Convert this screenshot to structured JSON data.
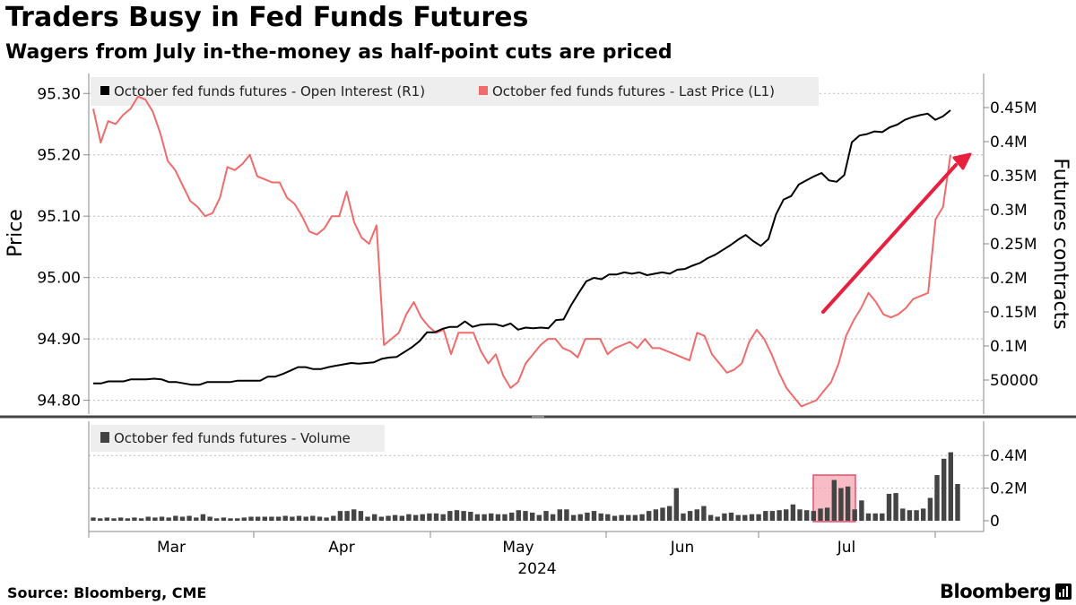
{
  "title": "Traders Busy in Fed Funds Futures",
  "subtitle": "Wagers from July in-the-money as half-point cuts are priced",
  "source": "Source: Bloomberg, CME",
  "brand": "Bloomberg",
  "colors": {
    "price": "#f06b6b",
    "open_interest": "#000000",
    "volume": "#444444",
    "arrow": "#e8203f",
    "highlight_fill": "#f4a6b2",
    "highlight_stroke": "#e6506a",
    "grid": "#bbbbbb",
    "legend_bg": "#eeeeee"
  },
  "chart_data": [
    {
      "type": "line",
      "title": "Traders Busy in Fed Funds Futures",
      "xlabel": "2024",
      "ylabel_left": "Price",
      "ylabel_right": "Futures contracts",
      "x_tick_labels": [
        "Mar",
        "Apr",
        "May",
        "Jun",
        "Jul"
      ],
      "x_year_label": "2024",
      "ylim_left": [
        94.7775,
        95.3325
      ],
      "ylim_right": [
        0,
        0.5
      ],
      "left_ticks": [
        "95.30",
        "95.20",
        "95.10",
        "95.00",
        "94.90",
        "94.80"
      ],
      "left_tick_values": [
        95.3,
        95.2,
        95.1,
        95.0,
        94.9,
        94.8
      ],
      "right_ticks": [
        "0.45M",
        "0.4M",
        "0.35M",
        "0.3M",
        "0.25M",
        "0.2M",
        "0.15M",
        "0.1M",
        "50000"
      ],
      "right_tick_values": [
        0.45,
        0.4,
        0.35,
        0.3,
        0.25,
        0.2,
        0.15,
        0.1,
        0.05
      ],
      "legend_position": "top-left",
      "series": [
        {
          "name": "October fed funds futures - Open Interest (R1)",
          "axis": "right",
          "values": [
            0.045,
            0.045,
            0.048,
            0.048,
            0.048,
            0.051,
            0.051,
            0.051,
            0.052,
            0.051,
            0.047,
            0.047,
            0.045,
            0.043,
            0.043,
            0.047,
            0.047,
            0.047,
            0.047,
            0.049,
            0.049,
            0.049,
            0.049,
            0.055,
            0.055,
            0.059,
            0.064,
            0.069,
            0.069,
            0.066,
            0.066,
            0.069,
            0.071,
            0.073,
            0.075,
            0.074,
            0.075,
            0.076,
            0.081,
            0.083,
            0.084,
            0.091,
            0.098,
            0.107,
            0.12,
            0.12,
            0.125,
            0.128,
            0.128,
            0.136,
            0.128,
            0.131,
            0.132,
            0.132,
            0.129,
            0.133,
            0.124,
            0.127,
            0.126,
            0.127,
            0.126,
            0.138,
            0.139,
            0.16,
            0.178,
            0.195,
            0.2,
            0.198,
            0.205,
            0.205,
            0.208,
            0.206,
            0.208,
            0.204,
            0.206,
            0.208,
            0.206,
            0.212,
            0.213,
            0.218,
            0.222,
            0.229,
            0.234,
            0.241,
            0.248,
            0.256,
            0.263,
            0.254,
            0.247,
            0.257,
            0.293,
            0.315,
            0.32,
            0.337,
            0.343,
            0.349,
            0.354,
            0.343,
            0.341,
            0.351,
            0.399,
            0.409,
            0.411,
            0.415,
            0.414,
            0.421,
            0.425,
            0.432,
            0.436,
            0.439,
            0.441,
            0.432,
            0.437,
            0.446
          ]
        },
        {
          "name": "October fed funds futures - Last Price (L1)",
          "axis": "left",
          "values": [
            95.275,
            95.22,
            95.255,
            95.25,
            95.265,
            95.275,
            95.295,
            95.29,
            95.27,
            95.235,
            95.19,
            95.175,
            95.15,
            95.125,
            95.115,
            95.1,
            95.105,
            95.13,
            95.18,
            95.175,
            95.185,
            95.2,
            95.165,
            95.16,
            95.155,
            95.155,
            95.13,
            95.12,
            95.1,
            95.075,
            95.07,
            95.08,
            95.1,
            95.1,
            95.14,
            95.09,
            95.065,
            95.055,
            95.085,
            94.89,
            94.9,
            94.91,
            94.94,
            94.96,
            94.935,
            94.92,
            94.91,
            94.915,
            94.875,
            94.91,
            94.91,
            94.91,
            94.88,
            94.86,
            94.875,
            94.84,
            94.82,
            94.83,
            94.86,
            94.875,
            94.89,
            94.9,
            94.9,
            94.885,
            94.88,
            94.87,
            94.9,
            94.9,
            94.9,
            94.875,
            94.885,
            94.89,
            94.895,
            94.885,
            94.9,
            94.885,
            94.885,
            94.88,
            94.875,
            94.87,
            94.865,
            94.91,
            94.905,
            94.875,
            94.86,
            94.845,
            94.85,
            94.86,
            94.895,
            94.915,
            94.9,
            94.875,
            94.845,
            94.82,
            94.805,
            94.79,
            94.795,
            94.8,
            94.815,
            94.83,
            94.86,
            94.905,
            94.93,
            94.95,
            94.975,
            94.96,
            94.94,
            94.935,
            94.94,
            94.95,
            94.965,
            94.97,
            94.975,
            95.095,
            95.115,
            95.2
          ]
        }
      ]
    },
    {
      "type": "bar",
      "title": "October fed funds futures - Volume",
      "ylim": [
        0,
        0.55
      ],
      "y_ticks": [
        "0.4M",
        "0.2M",
        "0"
      ],
      "y_tick_values": [
        0.4,
        0.2,
        0
      ],
      "series": [
        {
          "name": "October fed funds futures - Volume",
          "values": [
            0.02,
            0.015,
            0.02,
            0.015,
            0.02,
            0.015,
            0.02,
            0.015,
            0.025,
            0.02,
            0.025,
            0.02,
            0.03,
            0.025,
            0.03,
            0.02,
            0.04,
            0.025,
            0.015,
            0.02,
            0.015,
            0.015,
            0.02,
            0.025,
            0.025,
            0.025,
            0.025,
            0.025,
            0.03,
            0.025,
            0.03,
            0.025,
            0.03,
            0.025,
            0.02,
            0.03,
            0.06,
            0.06,
            0.07,
            0.06,
            0.025,
            0.04,
            0.025,
            0.03,
            0.035,
            0.03,
            0.04,
            0.035,
            0.04,
            0.045,
            0.045,
            0.04,
            0.06,
            0.065,
            0.06,
            0.055,
            0.04,
            0.04,
            0.045,
            0.04,
            0.04,
            0.05,
            0.065,
            0.06,
            0.05,
            0.035,
            0.06,
            0.04,
            0.07,
            0.07,
            0.035,
            0.04,
            0.05,
            0.06,
            0.045,
            0.04,
            0.03,
            0.035,
            0.035,
            0.035,
            0.04,
            0.06,
            0.07,
            0.08,
            0.09,
            0.2,
            0.045,
            0.06,
            0.07,
            0.09,
            0.035,
            0.025,
            0.045,
            0.05,
            0.035,
            0.035,
            0.04,
            0.04,
            0.06,
            0.06,
            0.065,
            0.07,
            0.1,
            0.07,
            0.065,
            0.06,
            0.075,
            0.08,
            0.25,
            0.2,
            0.21,
            0.07,
            0.125,
            0.045,
            0.045,
            0.045,
            0.165,
            0.17,
            0.075,
            0.065,
            0.065,
            0.075,
            0.14,
            0.28,
            0.38,
            0.42,
            0.225
          ]
        }
      ]
    }
  ]
}
